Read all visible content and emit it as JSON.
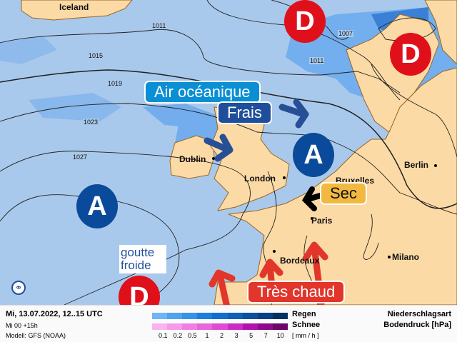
{
  "map": {
    "places": [
      "Iceland",
      "Dublin",
      "London",
      "Bruxelles",
      "Paris",
      "Berlin",
      "Bordeaux",
      "Milano"
    ],
    "isobars": [
      "1011",
      "1015",
      "1019",
      "1023",
      "1027",
      "1007",
      "1011"
    ],
    "pressure_systems": {
      "high": "A",
      "low": "D"
    },
    "annotations": {
      "oceanic_air": "Air océanique",
      "cool": "Frais",
      "dry": "Sec",
      "very_hot": "Très chaud",
      "cut_off_low": "goutte froide"
    },
    "colors": {
      "sea": "#a9c9ec",
      "land": "#fcdaa6",
      "high": "#0a4a9a",
      "low": "#e0101a",
      "oceanic": "#0a8fd4",
      "cool": "#1f4f9a",
      "dry": "#f2b941",
      "hot": "#e2352b",
      "precip": "#4d94e6"
    }
  },
  "legend": {
    "date": "Mi, 13.07.2022, 12..15 UTC",
    "run": "Mi 00 +15h",
    "model": "Modell: GFS (NOAA)",
    "rain_label": "Regen",
    "snow_label": "Schnee",
    "unit": "[ mm / h ]",
    "ticks": [
      "0.1",
      "0.2",
      "0.5",
      "1",
      "2",
      "3",
      "5",
      "7",
      "10"
    ],
    "type_label": "Niederschlagsart",
    "pressure_label": "Bodendruck [hPa]",
    "rain_colors": [
      "#6fb4f4",
      "#4ea3f0",
      "#3592e8",
      "#1d7fdc",
      "#136fcc",
      "#0e5fb6",
      "#0b4f9e",
      "#093f84",
      "#06305f"
    ],
    "snow_colors": [
      "#f8b4f0",
      "#f59ae8",
      "#f07ee2",
      "#e866dc",
      "#df4cd4",
      "#cc2cc4",
      "#b112ae",
      "#8e0a8c",
      "#6c066a"
    ]
  }
}
